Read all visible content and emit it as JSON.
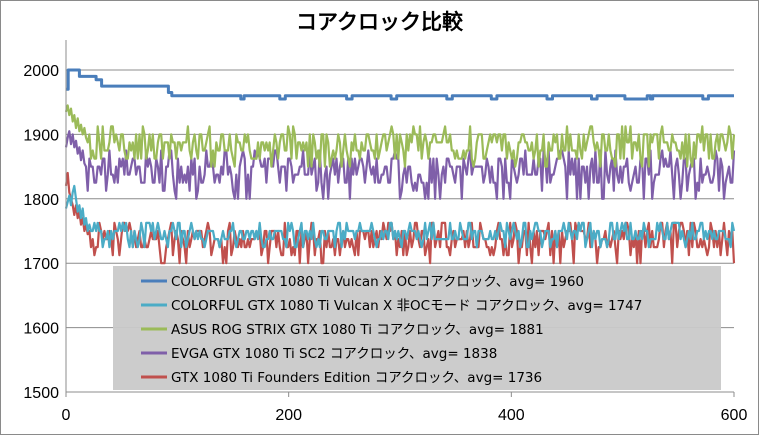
{
  "chart_data": {
    "type": "line",
    "title": "コアクロック比較",
    "xlabel": "",
    "ylabel": "",
    "xlim": [
      0,
      600
    ],
    "ylim": [
      1500,
      2000
    ],
    "xticks": [
      0,
      200,
      400,
      600
    ],
    "yticks": [
      1500,
      1600,
      1700,
      1800,
      1900,
      2000
    ],
    "xtick_labels": [
      "0",
      "200",
      "400",
      "600"
    ],
    "ytick_labels": [
      "1500",
      "1600",
      "1700",
      "1800",
      "1900",
      "2000"
    ],
    "grid": "horizontal",
    "legend_position": "bottom-center, inside plot",
    "series": [
      {
        "name": "COLORFUL GTX 1080 Ti Vulcan X OCコアクロック、avg= 1960",
        "color": "#4a7ebb",
        "x": [
          0,
          2,
          4,
          10,
          12,
          25,
          27,
          30,
          32,
          90,
          92,
          95,
          100,
          155,
          157,
          158,
          160,
          190,
          192,
          195,
          197,
          250,
          252,
          255,
          257,
          290,
          292,
          295,
          297,
          340,
          342,
          345,
          347,
          380,
          382,
          385,
          387,
          430,
          432,
          435,
          437,
          470,
          472,
          475,
          477,
          500,
          502,
          520,
          522,
          525,
          527,
          570,
          572,
          575,
          577,
          600
        ],
        "values": [
          1970,
          2000,
          2000,
          2000,
          1990,
          1990,
          1985,
          1985,
          1975,
          1975,
          1965,
          1960,
          1960,
          1960,
          1955,
          1955,
          1960,
          1960,
          1955,
          1955,
          1960,
          1960,
          1955,
          1955,
          1960,
          1960,
          1955,
          1955,
          1960,
          1960,
          1955,
          1955,
          1960,
          1960,
          1955,
          1955,
          1960,
          1960,
          1955,
          1955,
          1960,
          1960,
          1955,
          1955,
          1960,
          1960,
          1955,
          1955,
          1960,
          1955,
          1960,
          1960,
          1955,
          1955,
          1960,
          1960
        ]
      },
      {
        "name": "COLORFUL GTX 1080 Ti Vulcan X 非OCモード コアクロック、avg= 1747",
        "color": "#4bacc6",
        "x": [
          0,
          600
        ],
        "values": [
          1747,
          1747
        ],
        "pattern": "noise",
        "noise_range": [
          1730,
          1760
        ],
        "start_values": [
          1785,
          1795,
          1805,
          1790,
          1810,
          1820,
          1800,
          1780,
          1790,
          1770,
          1785,
          1760,
          1770,
          1750,
          1760
        ]
      },
      {
        "name": "ASUS ROG STRIX GTX 1080 Ti コアクロック、avg= 1881",
        "color": "#9bbb59",
        "x": [
          0,
          600
        ],
        "values": [
          1881,
          1881
        ],
        "pattern": "noise",
        "noise_range": [
          1860,
          1905
        ],
        "start_values": [
          1935,
          1945,
          1930,
          1940,
          1920,
          1930,
          1910,
          1925,
          1905,
          1915,
          1900,
          1910,
          1895
        ]
      },
      {
        "name": "EVGA GTX 1080 Ti SC2 コアクロック、avg= 1838",
        "color": "#7f5fa9",
        "x": [
          0,
          600
        ],
        "values": [
          1838,
          1838
        ],
        "pattern": "noise",
        "noise_range": [
          1815,
          1870
        ],
        "start_values": [
          1880,
          1895,
          1905,
          1885,
          1900,
          1880,
          1890,
          1870,
          1880,
          1860,
          1875,
          1855
        ]
      },
      {
        "name": "GTX 1080 Ti Founders Edition コアクロック、avg= 1736",
        "color": "#c0504d",
        "x": [
          0,
          600
        ],
        "values": [
          1736,
          1736
        ],
        "pattern": "noise",
        "noise_range": [
          1715,
          1760
        ],
        "start_values": [
          1820,
          1840,
          1810,
          1800,
          1790,
          1775,
          1790,
          1770,
          1780,
          1760,
          1770,
          1750,
          1760,
          1745
        ]
      }
    ]
  }
}
